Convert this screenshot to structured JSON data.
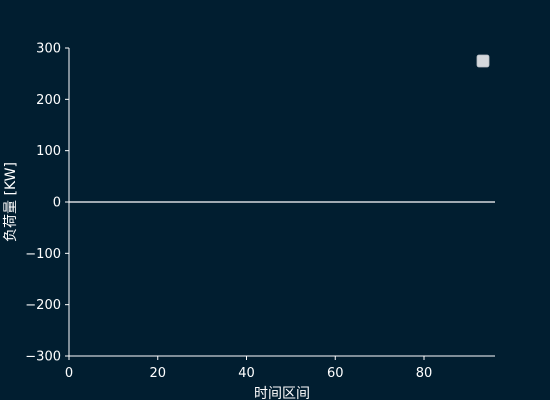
{
  "chart_data": {
    "type": "line",
    "title": "",
    "xlabel": "时间区间",
    "ylabel": "负荷量 [KW]",
    "xlim": [
      0,
      96
    ],
    "ylim": [
      -300,
      300
    ],
    "x_ticks": [
      0,
      20,
      40,
      60,
      80
    ],
    "y_ticks": [
      -300,
      -200,
      -100,
      0,
      100,
      200,
      300
    ],
    "series": [
      {
        "x": [
          0,
          96
        ],
        "values": [
          0,
          0
        ]
      }
    ],
    "legend": {
      "position": "top-right",
      "entries": [
        ""
      ]
    },
    "grid": false,
    "colors": {
      "background": "#011e30",
      "axis": "#ffffff",
      "text": "#ffffff",
      "line": "#ffffff",
      "legend_box": "#d4d8dc"
    }
  }
}
